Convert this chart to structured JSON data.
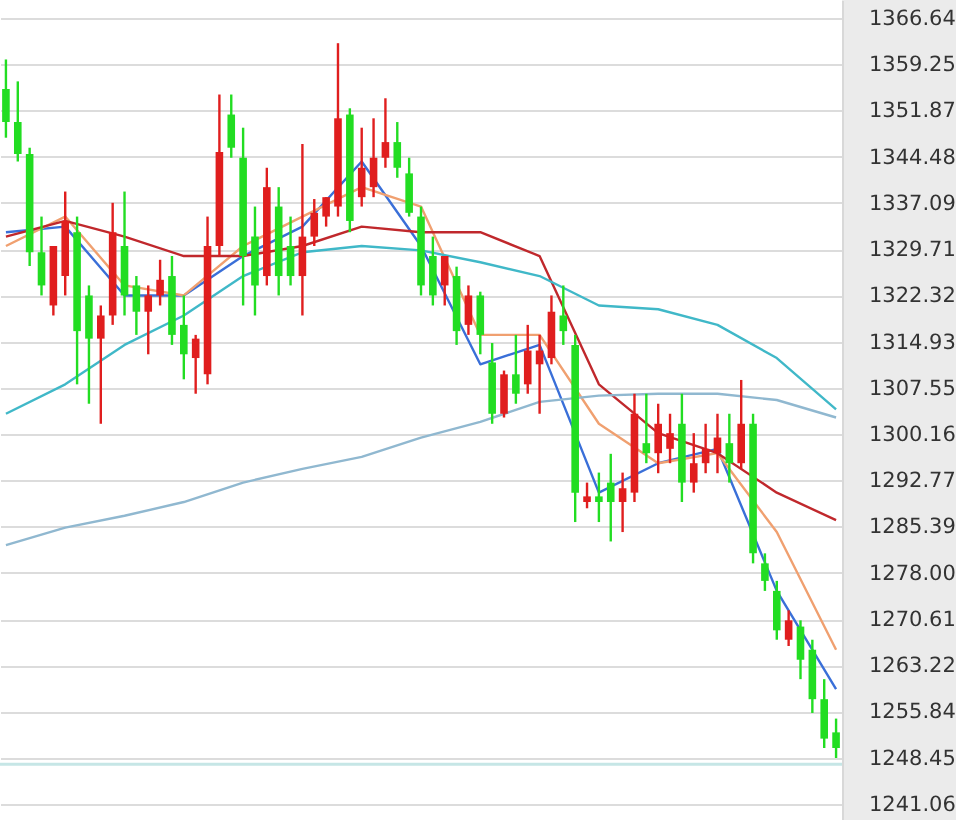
{
  "chart_data": {
    "type": "candlestick",
    "categories": [
      null,
      null,
      null,
      null,
      null,
      null,
      null,
      null,
      null,
      null,
      null,
      null,
      null,
      null,
      null,
      null,
      null,
      null,
      null,
      null,
      null,
      null,
      null,
      null,
      null,
      null,
      null,
      null,
      null,
      null,
      null,
      null,
      null,
      null,
      null,
      null,
      null,
      null,
      null,
      null,
      null,
      null,
      null,
      null,
      null,
      null,
      null,
      null,
      null,
      null,
      null,
      null,
      null,
      null,
      null,
      null,
      null,
      null,
      null,
      null,
      null,
      null,
      null,
      null,
      null,
      null,
      null,
      null,
      null,
      null,
      null
    ],
    "ohlc": [
      [
        1355.3,
        1360.0,
        1347.5,
        1350.0
      ],
      [
        1350.0,
        1356.5,
        1343.7,
        1344.9
      ],
      [
        1344.9,
        1345.9,
        1327.0,
        1329.2
      ],
      [
        1329.2,
        1334.9,
        1322.3,
        1323.9
      ],
      [
        1320.7,
        1330.2,
        1319.1,
        1330.2
      ],
      [
        1325.4,
        1338.9,
        1322.3,
        1334.2
      ],
      [
        1332.4,
        1334.9,
        1308.1,
        1316.6
      ],
      [
        1322.3,
        1323.9,
        1305.0,
        1315.4
      ],
      [
        1315.4,
        1320.7,
        1301.8,
        1319.1
      ],
      [
        1319.1,
        1337.1,
        1317.6,
        1332.4
      ],
      [
        1330.2,
        1338.9,
        1319.1,
        1322.3
      ],
      [
        1323.9,
        1325.4,
        1316.0,
        1319.7
      ],
      [
        1319.7,
        1323.9,
        1312.9,
        1322.3
      ],
      [
        1322.3,
        1328.0,
        1320.7,
        1324.8
      ],
      [
        1325.4,
        1328.6,
        1314.4,
        1316.0
      ],
      [
        1317.6,
        1322.3,
        1308.9,
        1312.9
      ],
      [
        1312.3,
        1316.0,
        1306.6,
        1315.4
      ],
      [
        1309.7,
        1334.9,
        1308.1,
        1330.2
      ],
      [
        1330.2,
        1354.4,
        1328.6,
        1345.2
      ],
      [
        1351.2,
        1354.4,
        1344.3,
        1345.9
      ],
      [
        1344.3,
        1349.1,
        1320.7,
        1328.6
      ],
      [
        1331.7,
        1336.5,
        1319.1,
        1323.9
      ],
      [
        1325.4,
        1342.7,
        1323.9,
        1339.6
      ],
      [
        1336.5,
        1339.6,
        1322.3,
        1325.4
      ],
      [
        1330.2,
        1334.9,
        1323.9,
        1325.4
      ],
      [
        1325.4,
        1346.5,
        1319.1,
        1331.7
      ],
      [
        1331.7,
        1337.7,
        1330.2,
        1335.5
      ],
      [
        1334.9,
        1338.0,
        1333.3,
        1338.0
      ],
      [
        1336.5,
        1362.6,
        1334.9,
        1350.6
      ],
      [
        1351.2,
        1352.2,
        1332.4,
        1334.2
      ],
      [
        1338.0,
        1349.1,
        1336.5,
        1342.7
      ],
      [
        1339.6,
        1350.6,
        1338.0,
        1344.3
      ],
      [
        1344.3,
        1353.8,
        1342.7,
        1346.8
      ],
      [
        1346.8,
        1350.0,
        1341.1,
        1342.7
      ],
      [
        1341.8,
        1344.3,
        1334.9,
        1335.5
      ],
      [
        1334.9,
        1336.5,
        1322.3,
        1323.9
      ],
      [
        1328.6,
        1331.7,
        1320.7,
        1322.3
      ],
      [
        1323.9,
        1328.6,
        1320.7,
        1328.6
      ],
      [
        1325.4,
        1326.9,
        1314.4,
        1316.6
      ],
      [
        1317.6,
        1323.9,
        1316.0,
        1322.3
      ],
      [
        1322.3,
        1322.9,
        1312.9,
        1316.0
      ],
      [
        1311.6,
        1314.7,
        1301.8,
        1303.4
      ],
      [
        1303.4,
        1310.3,
        1302.8,
        1309.7
      ],
      [
        1309.7,
        1316.0,
        1305.0,
        1306.6
      ],
      [
        1308.1,
        1317.6,
        1306.6,
        1313.5
      ],
      [
        1311.3,
        1316.0,
        1303.4,
        1313.5
      ],
      [
        1312.3,
        1322.3,
        1311.3,
        1319.7
      ],
      [
        1319.1,
        1323.9,
        1314.4,
        1316.6
      ],
      [
        1314.4,
        1316.0,
        1286.1,
        1290.8
      ],
      [
        1289.3,
        1292.4,
        1288.3,
        1290.2
      ],
      [
        1290.2,
        1294.0,
        1286.1,
        1289.3
      ],
      [
        1292.4,
        1297.0,
        1283.0,
        1289.3
      ],
      [
        1289.3,
        1294.0,
        1284.5,
        1291.5
      ],
      [
        1290.8,
        1306.6,
        1289.3,
        1303.4
      ],
      [
        1298.7,
        1306.6,
        1295.5,
        1297.1
      ],
      [
        1297.1,
        1305.0,
        1293.9,
        1301.8
      ],
      [
        1297.8,
        1303.4,
        1295.5,
        1300.3
      ],
      [
        1301.8,
        1306.6,
        1289.3,
        1292.4
      ],
      [
        1292.4,
        1300.3,
        1290.8,
        1295.5
      ],
      [
        1295.5,
        1301.8,
        1293.9,
        1297.8
      ],
      [
        1297.1,
        1303.4,
        1293.9,
        1299.6
      ],
      [
        1298.7,
        1303.4,
        1292.4,
        1295.5
      ],
      [
        1295.5,
        1308.8,
        1294.6,
        1301.8
      ],
      [
        1301.8,
        1303.4,
        1279.5,
        1281.1
      ],
      [
        1279.5,
        1281.1,
        1275.1,
        1276.7
      ],
      [
        1275.1,
        1276.7,
        1267.3,
        1268.8
      ],
      [
        1267.3,
        1272.0,
        1266.3,
        1270.4
      ],
      [
        1269.4,
        1270.4,
        1261.0,
        1264.1
      ],
      [
        1265.7,
        1267.3,
        1255.6,
        1257.8
      ],
      [
        1257.8,
        1261.0,
        1250.0,
        1251.5
      ],
      [
        1252.5,
        1254.7,
        1248.4,
        1250.0
      ]
    ],
    "colors": [
      "#22dd22",
      "#22dd22",
      "#22dd22",
      "#22dd22",
      "#e01e1e",
      "#e01e1e",
      "#22dd22",
      "#22dd22",
      "#e01e1e",
      "#e01e1e",
      "#22dd22",
      "#22dd22",
      "#e01e1e",
      "#e01e1e",
      "#22dd22",
      "#22dd22",
      "#e01e1e",
      "#e01e1e",
      "#e01e1e",
      "#22dd22",
      "#22dd22",
      "#22dd22",
      "#e01e1e",
      "#22dd22",
      "#22dd22",
      "#e01e1e",
      "#e01e1e",
      "#e01e1e",
      "#e01e1e",
      "#22dd22",
      "#e01e1e",
      "#e01e1e",
      "#e01e1e",
      "#22dd22",
      "#22dd22",
      "#22dd22",
      "#22dd22",
      "#e01e1e",
      "#22dd22",
      "#e01e1e",
      "#22dd22",
      "#22dd22",
      "#e01e1e",
      "#22dd22",
      "#e01e1e",
      "#e01e1e",
      "#e01e1e",
      "#22dd22",
      "#22dd22",
      "#e01e1e",
      "#22dd22",
      "#22dd22",
      "#e01e1e",
      "#e01e1e",
      "#22dd22",
      "#e01e1e",
      "#e01e1e",
      "#22dd22",
      "#e01e1e",
      "#e01e1e",
      "#e01e1e",
      "#22dd22",
      "#e01e1e",
      "#22dd22",
      "#22dd22",
      "#22dd22",
      "#e01e1e",
      "#22dd22",
      "#22dd22",
      "#22dd22",
      "#22dd22"
    ],
    "series": [
      {
        "type": "line",
        "color": "#3a6fd8",
        "values": [
          1332.4,
          null,
          null,
          null,
          null,
          1333.3,
          null,
          null,
          null,
          null,
          1322.3,
          null,
          null,
          null,
          null,
          1322.3,
          null,
          null,
          null,
          null,
          1328.6,
          null,
          null,
          null,
          null,
          1333.3,
          null,
          null,
          null,
          null,
          1343.7,
          null,
          null,
          null,
          null,
          1330.2,
          null,
          null,
          null,
          null,
          1311.3,
          null,
          null,
          null,
          null,
          1314.4,
          null,
          null,
          null,
          null,
          1290.8,
          null,
          null,
          null,
          null,
          1295.5,
          null,
          null,
          null,
          null,
          1297.8,
          null,
          null,
          null,
          null,
          1275.1,
          null,
          null,
          null,
          null,
          1259.4
        ]
      },
      {
        "type": "line",
        "color": "#f0a070",
        "values": [
          1330.2,
          null,
          null,
          null,
          null,
          1334.9,
          null,
          null,
          null,
          null,
          1323.9,
          null,
          null,
          null,
          null,
          1322.3,
          null,
          null,
          null,
          null,
          1330.2,
          null,
          null,
          null,
          null,
          1334.9,
          null,
          null,
          null,
          null,
          1339.6,
          null,
          null,
          null,
          null,
          1336.5,
          null,
          null,
          null,
          null,
          1316.0,
          null,
          null,
          null,
          null,
          1316.0,
          null,
          null,
          null,
          null,
          1301.8,
          null,
          null,
          null,
          null,
          1295.5,
          null,
          null,
          null,
          null,
          1297.1,
          null,
          null,
          null,
          null,
          1284.5,
          null,
          null,
          null,
          null,
          1265.7
        ]
      },
      {
        "type": "line",
        "color": "#c0282c",
        "values": [
          1331.7,
          null,
          null,
          null,
          null,
          1334.2,
          null,
          null,
          null,
          null,
          1331.7,
          null,
          null,
          null,
          null,
          1328.6,
          null,
          null,
          null,
          null,
          1328.6,
          null,
          null,
          null,
          null,
          1330.2,
          null,
          null,
          null,
          null,
          1333.3,
          null,
          null,
          null,
          null,
          1332.4,
          null,
          null,
          null,
          null,
          1332.4,
          null,
          null,
          null,
          null,
          1328.6,
          null,
          null,
          null,
          null,
          1308.1,
          null,
          null,
          null,
          null,
          1300.3,
          null,
          null,
          null,
          null,
          1297.1,
          null,
          null,
          null,
          null,
          1290.8,
          null,
          null,
          null,
          null,
          1286.4
        ]
      },
      {
        "type": "line",
        "color": "#40b8c8",
        "values": [
          1303.4,
          null,
          null,
          null,
          null,
          1308.1,
          null,
          null,
          null,
          null,
          1314.4,
          null,
          null,
          null,
          null,
          1319.1,
          null,
          null,
          null,
          null,
          1325.4,
          null,
          null,
          null,
          null,
          1329.2,
          null,
          null,
          null,
          null,
          1330.2,
          null,
          null,
          null,
          null,
          1329.5,
          null,
          null,
          null,
          null,
          1327.6,
          null,
          null,
          null,
          null,
          1325.4,
          null,
          null,
          null,
          null,
          1320.7,
          null,
          null,
          null,
          null,
          1320.1,
          null,
          null,
          null,
          null,
          1317.6,
          null,
          null,
          null,
          null,
          1312.3,
          null,
          null,
          null,
          null,
          1304.1
        ]
      },
      {
        "type": "line",
        "color": "#90b8d0",
        "values": [
          1282.4,
          null,
          null,
          null,
          null,
          1285.2,
          null,
          null,
          null,
          null,
          1287.1,
          null,
          null,
          null,
          null,
          1289.3,
          null,
          null,
          null,
          null,
          1292.4,
          null,
          null,
          null,
          null,
          1294.6,
          null,
          null,
          null,
          null,
          1296.5,
          null,
          null,
          null,
          null,
          1299.6,
          null,
          null,
          null,
          null,
          1302.1,
          null,
          null,
          null,
          null,
          1305.3,
          null,
          null,
          null,
          null,
          1306.3,
          null,
          null,
          null,
          null,
          1306.6,
          null,
          null,
          null,
          null,
          1306.6,
          null,
          null,
          null,
          null,
          1305.6,
          null,
          null,
          null,
          null,
          1302.8
        ]
      }
    ],
    "ylim": [
      1238.5,
      1369.5
    ],
    "yticks": [
      1366.64,
      1359.25,
      1351.87,
      1344.48,
      1337.09,
      1329.71,
      1322.32,
      1314.93,
      1307.55,
      1300.16,
      1292.77,
      1285.39,
      {
        "value": 1278,
        "label": "1278.00"
      },
      1270.61,
      1263.22,
      1255.84,
      1248.45,
      1241.06
    ],
    "ref_lines": [
      {
        "axis": "y",
        "value": 1247.4,
        "color": "#c6e6e6"
      }
    ],
    "grid": "y",
    "tick_labels": "y"
  }
}
